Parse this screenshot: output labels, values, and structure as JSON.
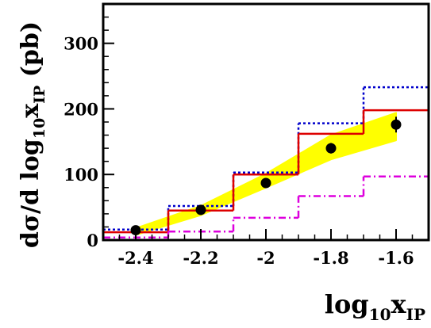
{
  "chart_data": {
    "type": "line",
    "title": "",
    "xlabel": {
      "base": "log",
      "sub": "10",
      "main": "x",
      "sub2": "IP"
    },
    "ylabel": {
      "prefix": "dσ/d log",
      "sub": "10",
      "main": "x",
      "sub2": "IP",
      "unit": " (pb)"
    },
    "xlim": [
      -2.5,
      -1.5
    ],
    "ylim": [
      0,
      360
    ],
    "x_ticks": [
      {
        "value": -2.4,
        "label": "-2.4"
      },
      {
        "value": -2.2,
        "label": "-2.2"
      },
      {
        "value": -2.0,
        "label": "-2"
      },
      {
        "value": -1.8,
        "label": "-1.8"
      },
      {
        "value": -1.6,
        "label": "-1.6"
      }
    ],
    "y_ticks": [
      {
        "value": 0,
        "label": "0"
      },
      {
        "value": 100,
        "label": "100"
      },
      {
        "value": 200,
        "label": "200"
      },
      {
        "value": 300,
        "label": "300"
      }
    ],
    "bin_edges": [
      -2.5,
      -2.3,
      -2.1,
      -1.9,
      -1.7,
      -1.5
    ],
    "data_points": {
      "x": [
        -2.4,
        -2.2,
        -2.0,
        -1.8,
        -1.6
      ],
      "y": [
        15,
        46,
        87,
        140,
        176
      ],
      "yerr": [
        4,
        5,
        6,
        8,
        12
      ],
      "color": "#000000"
    },
    "band": {
      "x": [
        -2.4,
        -2.2,
        -2.0,
        -1.8,
        -1.6
      ],
      "lower": [
        8,
        38,
        80,
        123,
        152
      ],
      "upper": [
        18,
        52,
        101,
        160,
        194
      ],
      "color": "#ffff00"
    },
    "series": [
      {
        "values": [
          16,
          52,
          103,
          178,
          233
        ],
        "color": "#0000cc",
        "style": "dotted"
      },
      {
        "values": [
          12,
          45,
          100,
          162,
          198
        ],
        "color": "#dd0000",
        "style": "solid"
      },
      {
        "values": [
          4,
          13,
          34,
          67,
          97
        ],
        "color": "#dd00dd",
        "style": "dashdot"
      }
    ],
    "grid": false,
    "legend": "none"
  }
}
